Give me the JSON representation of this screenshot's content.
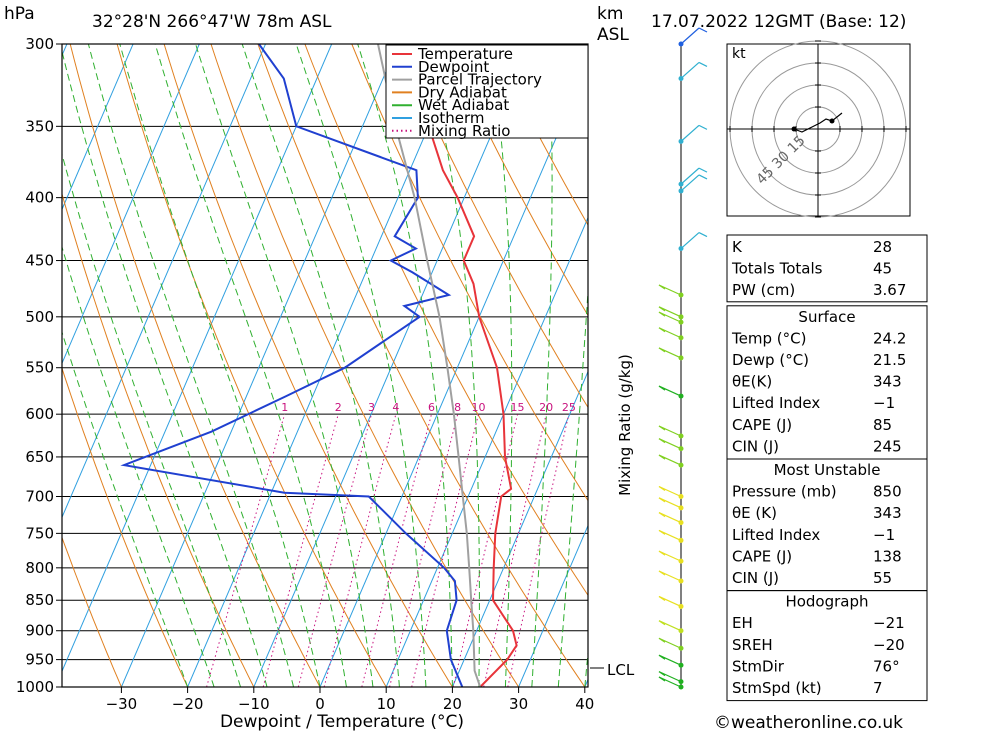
{
  "header": {
    "pressure_unit": "hPa",
    "location": "32°28'N 266°47'W 78m ASL",
    "km_label": "km",
    "asl_label": "ASL",
    "datetime": "17.07.2022 12GMT (Base: 12)"
  },
  "chart_data": {
    "type": "skew-t",
    "xlabel": "Dewpoint / Temperature (°C)",
    "ylabel": "hPa",
    "secondary_label": "Mixing Ratio (g/kg)",
    "x_ticks": [
      -30,
      -20,
      -10,
      0,
      10,
      20,
      30,
      40
    ],
    "pressure_levels": [
      300,
      350,
      400,
      450,
      500,
      550,
      600,
      650,
      700,
      750,
      800,
      850,
      900,
      950,
      1000
    ],
    "xlim": [
      -40,
      40
    ],
    "ylim": [
      1000,
      300
    ],
    "mixing_ratio_labels": [
      "1",
      "2",
      "3",
      "4",
      "6",
      "8",
      "10",
      "15",
      "20",
      "25"
    ],
    "lcl_label": "LCL",
    "lcl_pressure": 970,
    "legend": [
      {
        "name": "Temperature",
        "color": "#e8343a",
        "style": "solid"
      },
      {
        "name": "Dewpoint",
        "color": "#2040d0",
        "style": "solid"
      },
      {
        "name": "Parcel Trajectory",
        "color": "#a0a0a0",
        "style": "solid"
      },
      {
        "name": "Dry Adiabat",
        "color": "#e08020",
        "style": "solid"
      },
      {
        "name": "Wet Adiabat",
        "color": "#30b030",
        "style": "solid"
      },
      {
        "name": "Isotherm",
        "color": "#30a0e0",
        "style": "solid"
      },
      {
        "name": "Mixing Ratio",
        "color": "#c8127e",
        "style": "dotted"
      }
    ],
    "series": [
      {
        "name": "Temperature",
        "color": "#e8343a",
        "points": [
          [
            1000,
            24.2
          ],
          [
            950,
            26.5
          ],
          [
            925,
            27
          ],
          [
            900,
            25.5
          ],
          [
            850,
            20.5
          ],
          [
            800,
            18.5
          ],
          [
            750,
            16.5
          ],
          [
            700,
            15
          ],
          [
            690,
            16
          ],
          [
            650,
            13
          ],
          [
            600,
            10
          ],
          [
            550,
            6
          ],
          [
            500,
            0
          ],
          [
            470,
            -3
          ],
          [
            450,
            -6
          ],
          [
            430,
            -6
          ],
          [
            400,
            -11
          ],
          [
            380,
            -15
          ],
          [
            350,
            -20
          ],
          [
            320,
            -26
          ],
          [
            300,
            -30
          ]
        ]
      },
      {
        "name": "Dewpoint",
        "color": "#2040d0",
        "points": [
          [
            1000,
            21.5
          ],
          [
            950,
            18
          ],
          [
            900,
            15.5
          ],
          [
            850,
            15
          ],
          [
            820,
            13.5
          ],
          [
            800,
            11
          ],
          [
            750,
            3
          ],
          [
            700,
            -5
          ],
          [
            695,
            -18
          ],
          [
            660,
            -44
          ],
          [
            620,
            -33
          ],
          [
            580,
            -24
          ],
          [
            550,
            -17
          ],
          [
            500,
            -9
          ],
          [
            490,
            -12
          ],
          [
            480,
            -6
          ],
          [
            460,
            -13
          ],
          [
            450,
            -17
          ],
          [
            440,
            -14
          ],
          [
            430,
            -18
          ],
          [
            400,
            -17
          ],
          [
            380,
            -19
          ],
          [
            350,
            -40
          ],
          [
            320,
            -45
          ],
          [
            300,
            -51
          ]
        ]
      },
      {
        "name": "Parcel Trajectory",
        "color": "#a0a0a0",
        "points": [
          [
            1000,
            24.2
          ],
          [
            970,
            22.3
          ],
          [
            900,
            19.5
          ],
          [
            850,
            17.2
          ],
          [
            800,
            14.8
          ],
          [
            750,
            12.2
          ],
          [
            700,
            9.2
          ],
          [
            650,
            6
          ],
          [
            600,
            2.5
          ],
          [
            550,
            -1.5
          ],
          [
            500,
            -6
          ],
          [
            450,
            -11.5
          ],
          [
            400,
            -17.5
          ],
          [
            350,
            -25
          ],
          [
            300,
            -33
          ]
        ]
      }
    ]
  },
  "hodograph": {
    "unit": "kt",
    "ring_labels": [
      "15",
      "30",
      "45"
    ]
  },
  "indices": {
    "top": [
      {
        "label": "K",
        "value": "28"
      },
      {
        "label": "Totals Totals",
        "value": "45"
      },
      {
        "label": "PW (cm)",
        "value": "3.67"
      }
    ],
    "surface": {
      "title": "Surface",
      "rows": [
        {
          "label": "Temp (°C)",
          "value": "24.2"
        },
        {
          "label": "Dewp (°C)",
          "value": "21.5"
        },
        {
          "label": "θE(K)",
          "value": "343"
        },
        {
          "label": "Lifted Index",
          "value": "−1"
        },
        {
          "label": "CAPE (J)",
          "value": "85"
        },
        {
          "label": "CIN (J)",
          "value": "245"
        }
      ]
    },
    "most_unstable": {
      "title": "Most Unstable",
      "rows": [
        {
          "label": "Pressure (mb)",
          "value": "850"
        },
        {
          "label": "θE (K)",
          "value": "343"
        },
        {
          "label": "Lifted Index",
          "value": "−1"
        },
        {
          "label": "CAPE (J)",
          "value": "138"
        },
        {
          "label": "CIN (J)",
          "value": "55"
        }
      ]
    },
    "hodograph": {
      "title": "Hodograph",
      "rows": [
        {
          "label": "EH",
          "value": "−21"
        },
        {
          "label": "SREH",
          "value": "−20"
        },
        {
          "label": "StmDir",
          "value": "76°"
        },
        {
          "label": "StmSpd (kt)",
          "value": "7"
        }
      ]
    }
  },
  "footer": {
    "copyright": "©weatheronline.co.uk"
  }
}
